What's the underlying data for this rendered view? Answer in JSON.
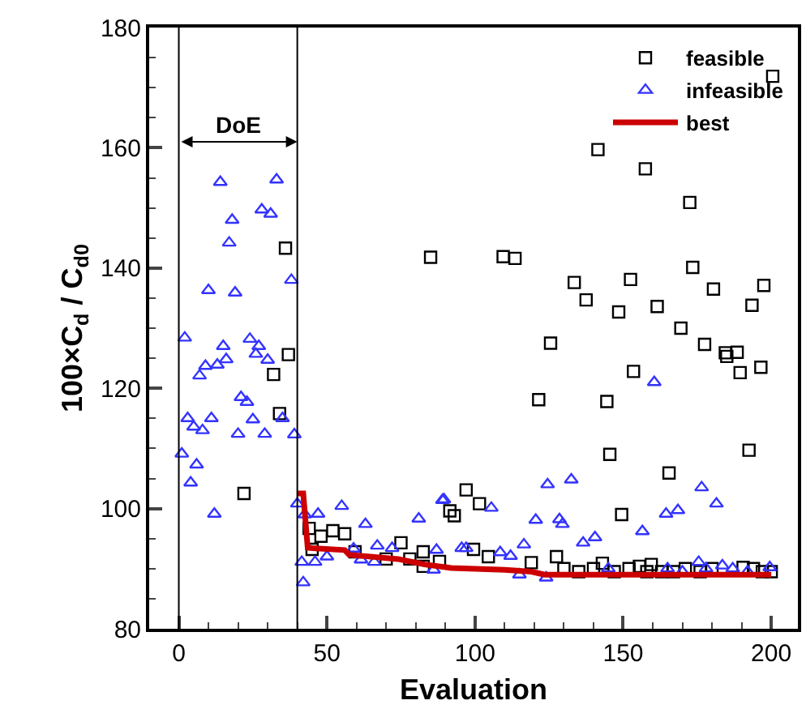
{
  "chart_data": {
    "type": "scatter",
    "xlabel": "Evaluation",
    "ylabel": "100×C$_{d}$ / C$_{d0}$",
    "xlim": [
      -10,
      209
    ],
    "ylim": [
      80,
      180
    ],
    "xticks": [
      0,
      50,
      100,
      150,
      200
    ],
    "yticks": [
      80,
      100,
      120,
      140,
      160,
      180
    ],
    "legend": "top right",
    "ref_lines": [
      {
        "axis": "x",
        "value": 0,
        "color": "#000000"
      },
      {
        "axis": "x",
        "value": 40,
        "color": "#000000"
      }
    ],
    "annotations": [
      "DoE"
    ],
    "series": [
      {
        "name": "feasible",
        "color": "#000000",
        "marker": "square",
        "x": [
          22,
          32,
          34,
          36,
          37,
          44,
          45,
          48,
          52,
          56,
          59.5,
          70,
          75,
          78,
          82.5,
          82.5,
          85,
          88,
          91.5,
          93,
          97,
          99.5,
          101.5,
          104.5,
          109.5,
          113.5,
          119,
          121.5,
          125.5,
          127.5,
          130,
          133.5,
          135,
          137.5,
          140,
          141.5,
          143,
          144.5,
          145.5,
          147,
          148.5,
          149.5,
          152,
          152.5,
          153.5,
          155.5,
          157.5,
          158,
          159.5,
          161.5,
          163,
          165.5,
          167,
          169.5,
          171,
          172.5,
          173.5,
          176,
          177.5,
          180,
          180.5,
          184.5,
          185,
          188.5,
          189.5,
          190.5,
          192.5,
          193.5,
          194,
          196.5,
          197,
          197.5,
          200,
          200.5
        ],
        "values": [
          102.5,
          122.3,
          115.8,
          143.3,
          125.6,
          96.7,
          93.2,
          95.4,
          96.3,
          95.8,
          92.8,
          91.6,
          94.3,
          91.6,
          92.8,
          90.4,
          141.8,
          91.2,
          99.6,
          98.8,
          103.1,
          93.2,
          100.8,
          92,
          141.9,
          141.6,
          91,
          118.1,
          127.5,
          92,
          90,
          137.6,
          89.5,
          134.7,
          90,
          159.7,
          90.9,
          117.8,
          109,
          89.5,
          132.7,
          99,
          90,
          138.1,
          122.8,
          90.4,
          156.5,
          89.5,
          90.7,
          133.6,
          89.5,
          105.9,
          89.5,
          130,
          90,
          150.9,
          140.1,
          89.5,
          127.3,
          90,
          136.5,
          125.9,
          125.3,
          126,
          122.6,
          90.2,
          109.7,
          133.8,
          90,
          123.5,
          89.5,
          137.1,
          89.5,
          171.9
        ]
      },
      {
        "name": "infeasible",
        "color": "#3333ff",
        "marker": "triangle",
        "x": [
          1,
          2,
          3,
          4,
          5,
          6,
          7,
          8,
          9,
          10,
          11,
          12,
          13,
          14,
          15,
          16,
          17,
          18,
          19,
          20,
          21,
          23,
          24,
          25,
          26,
          27,
          28,
          29,
          30,
          31,
          33,
          35,
          38,
          39,
          40,
          41.5,
          42,
          42.5,
          46,
          47,
          50,
          55,
          59,
          61.5,
          63,
          66,
          67,
          72,
          81,
          86,
          87,
          89,
          89.5,
          95.5,
          97,
          105.5,
          108.5,
          112,
          115,
          116.5,
          120.5,
          124,
          124.5,
          128.5,
          129.5,
          132.5,
          136.5,
          140.5,
          145,
          156.5,
          160.5,
          164.5,
          165,
          168.5,
          170,
          175.5,
          176.5,
          178,
          181.5,
          183.5,
          187,
          192,
          199.5
        ],
        "values": [
          109.1,
          128.4,
          115,
          104.3,
          113.6,
          107.3,
          122.1,
          113,
          123.7,
          136.3,
          115,
          99.1,
          123.9,
          154.3,
          127,
          124.8,
          144.2,
          148,
          135.9,
          112.4,
          118.5,
          117.7,
          128.2,
          114.8,
          125.7,
          127,
          149.7,
          112.4,
          124.7,
          149,
          154.7,
          115,
          138,
          112.3,
          100.8,
          91.1,
          87.7,
          99,
          91.1,
          99.1,
          92,
          100.4,
          93.3,
          91.5,
          97.4,
          91.1,
          93.8,
          93.4,
          98.3,
          89.8,
          93.1,
          101.4,
          101.5,
          93.4,
          93.4,
          100.1,
          92.7,
          92.1,
          89,
          94,
          98.1,
          88.5,
          104,
          98.2,
          97.4,
          104.8,
          94.3,
          95.2,
          90,
          96.2,
          121,
          99.1,
          90,
          99.7,
          89.5,
          91.1,
          103.5,
          90,
          100.8,
          90.5,
          90,
          89.5,
          90.2
        ]
      },
      {
        "name": "best",
        "color": "#cc0000",
        "type": "line",
        "marker": "none",
        "x": [
          40,
          42,
          43.5,
          45,
          56,
          57.5,
          74,
          83,
          92,
          110,
          119,
          123.5,
          200
        ],
        "values": [
          102.5,
          102.5,
          93.5,
          93.4,
          93.1,
          92.3,
          91.6,
          90.7,
          90.1,
          89.8,
          89.5,
          89,
          89
        ]
      }
    ]
  }
}
